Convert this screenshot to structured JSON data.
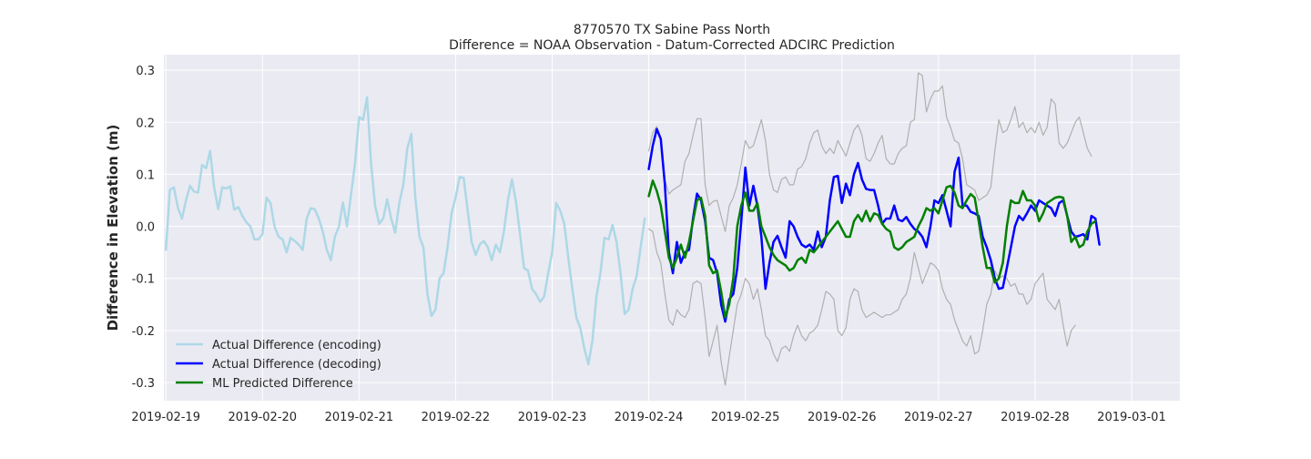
{
  "chart_data": {
    "type": "line",
    "title": "8770570 TX Sabine Pass North",
    "subtitle": "Difference = NOAA Observation - Datum-Corrected ADCIRC Prediction",
    "xlabel": "",
    "ylabel": "Difference in Elevation (m)",
    "x_axis": {
      "type": "date",
      "range": [
        "2019-02-18 23:30",
        "2019-03-01 12:00"
      ],
      "ticks": [
        "2019-02-19",
        "2019-02-20",
        "2019-02-21",
        "2019-02-22",
        "2019-02-23",
        "2019-02-24",
        "2019-02-25",
        "2019-02-26",
        "2019-02-27",
        "2019-02-28",
        "2019-03-01"
      ]
    },
    "ylim": [
      -0.335,
      0.33
    ],
    "yticks": [
      -0.3,
      -0.2,
      -0.1,
      0.0,
      0.1,
      0.2,
      0.3
    ],
    "grid": true,
    "legend_position": "bottom-left",
    "series": [
      {
        "name": "Actual Difference (encoding)",
        "color": "#add8e6",
        "x_start": "2019-02-19 00:00",
        "x_step_hours": 1,
        "values": [
          -0.045,
          0.07,
          0.075,
          0.035,
          0.015,
          0.05,
          0.078,
          0.067,
          0.065,
          0.118,
          0.112,
          0.145,
          0.075,
          0.033,
          0.075,
          0.073,
          0.077,
          0.032,
          0.037,
          0.02,
          0.008,
          0.0,
          -0.025,
          -0.025,
          -0.015,
          0.055,
          0.045,
          0.0,
          -0.02,
          -0.025,
          -0.05,
          -0.022,
          -0.028,
          -0.035,
          -0.045,
          0.015,
          0.035,
          0.033,
          0.015,
          -0.01,
          -0.045,
          -0.065,
          -0.02,
          0.0,
          0.046,
          0.0,
          0.06,
          0.12,
          0.21,
          0.205,
          0.248,
          0.12,
          0.04,
          0.005,
          0.015,
          0.052,
          0.015,
          -0.012,
          0.045,
          0.08,
          0.15,
          0.178,
          0.055,
          -0.02,
          -0.04,
          -0.13,
          -0.172,
          -0.16,
          -0.1,
          -0.09,
          -0.04,
          0.025,
          0.055,
          0.095,
          0.093,
          0.03,
          -0.03,
          -0.055,
          -0.035,
          -0.028,
          -0.04,
          -0.065,
          -0.035,
          -0.05,
          -0.01,
          0.05,
          0.09,
          0.048,
          -0.015,
          -0.08,
          -0.085,
          -0.12,
          -0.13,
          -0.145,
          -0.135,
          -0.09,
          -0.05,
          0.045,
          0.03,
          0.005,
          -0.06,
          -0.12,
          -0.175,
          -0.195,
          -0.235,
          -0.265,
          -0.22,
          -0.135,
          -0.09,
          -0.022,
          -0.025,
          0.003,
          -0.03,
          -0.09,
          -0.168,
          -0.16,
          -0.12,
          -0.095,
          -0.04,
          0.015
        ]
      },
      {
        "name": "Actual Difference (decoding)",
        "color": "#0000ff",
        "x_start": "2019-02-24 00:00",
        "x_step_hours": 1,
        "values": [
          0.11,
          0.155,
          0.187,
          0.168,
          0.08,
          -0.05,
          -0.09,
          -0.03,
          -0.07,
          -0.05,
          -0.045,
          0.015,
          0.063,
          0.05,
          0.01,
          -0.06,
          -0.065,
          -0.09,
          -0.15,
          -0.183,
          -0.14,
          -0.13,
          -0.08,
          0.01,
          0.113,
          0.04,
          0.078,
          0.04,
          -0.02,
          -0.12,
          -0.07,
          -0.03,
          -0.018,
          -0.04,
          -0.06,
          0.01,
          0.0,
          -0.02,
          -0.035,
          -0.04,
          -0.035,
          -0.045,
          -0.01,
          -0.04,
          -0.02,
          0.05,
          0.095,
          0.097,
          0.045,
          0.082,
          0.06,
          0.1,
          0.122,
          0.09,
          0.072,
          0.07,
          0.07,
          0.04,
          0.005,
          0.015,
          0.015,
          0.04,
          0.013,
          0.01,
          0.018,
          0.005,
          -0.005,
          -0.01,
          -0.02,
          -0.04,
          0.0,
          0.05,
          0.045,
          0.06,
          0.03,
          0.0,
          0.105,
          0.132,
          0.04,
          0.04,
          0.028,
          0.025,
          0.02,
          -0.02,
          -0.04,
          -0.065,
          -0.1,
          -0.12,
          -0.118,
          -0.08,
          -0.04,
          0.0,
          0.02,
          0.012,
          0.025,
          0.04,
          0.03,
          0.05,
          0.045,
          0.04,
          0.035,
          0.02,
          0.045,
          0.05,
          0.02,
          -0.01,
          -0.02,
          -0.018,
          -0.015,
          -0.025,
          0.02,
          0.015,
          -0.035
        ]
      },
      {
        "name": "ML Predicted Difference",
        "color": "#008000",
        "x_start": "2019-02-24 00:00",
        "x_step_hours": 1,
        "values": [
          0.058,
          0.088,
          0.068,
          0.04,
          -0.01,
          -0.06,
          -0.08,
          -0.06,
          -0.035,
          -0.06,
          -0.03,
          0.01,
          0.05,
          0.055,
          0.02,
          -0.075,
          -0.09,
          -0.085,
          -0.125,
          -0.175,
          -0.15,
          -0.1,
          0.0,
          0.04,
          0.065,
          0.03,
          0.03,
          0.045,
          0.0,
          -0.02,
          -0.04,
          -0.055,
          -0.065,
          -0.07,
          -0.075,
          -0.085,
          -0.08,
          -0.065,
          -0.06,
          -0.07,
          -0.045,
          -0.05,
          -0.04,
          -0.03,
          -0.02,
          -0.01,
          0.0,
          0.01,
          -0.005,
          -0.02,
          -0.02,
          0.01,
          0.022,
          0.01,
          0.03,
          0.01,
          0.025,
          0.022,
          0.005,
          -0.005,
          -0.01,
          -0.04,
          -0.045,
          -0.04,
          -0.03,
          -0.025,
          -0.02,
          0.0,
          0.015,
          0.035,
          0.03,
          0.035,
          0.025,
          0.05,
          0.075,
          0.078,
          0.065,
          0.04,
          0.035,
          0.05,
          0.062,
          0.055,
          0.01,
          -0.04,
          -0.08,
          -0.08,
          -0.108,
          -0.1,
          -0.07,
          0.0,
          0.05,
          0.045,
          0.045,
          0.068,
          0.05,
          0.05,
          0.04,
          0.01,
          0.025,
          0.045,
          0.05,
          0.055,
          0.057,
          0.055,
          0.02,
          -0.03,
          -0.02,
          -0.04,
          -0.035,
          -0.01,
          0.005,
          0.01
        ]
      },
      {
        "name": "",
        "color": "#b0b0b0",
        "x_start": "2019-02-24 00:00",
        "x_step_hours": 1,
        "values": [
          0.145,
          0.18,
          0.192,
          0.17,
          0.09,
          0.062,
          0.07,
          0.075,
          0.08,
          0.125,
          0.14,
          0.175,
          0.207,
          0.207,
          0.08,
          0.04,
          0.048,
          0.05,
          0.02,
          -0.01,
          0.04,
          0.055,
          0.08,
          0.12,
          0.165,
          0.15,
          0.155,
          0.18,
          0.205,
          0.165,
          0.1,
          0.07,
          0.065,
          0.09,
          0.095,
          0.08,
          0.08,
          0.11,
          0.115,
          0.13,
          0.16,
          0.18,
          0.185,
          0.155,
          0.14,
          0.15,
          0.14,
          0.165,
          0.15,
          0.135,
          0.16,
          0.185,
          0.195,
          0.175,
          0.13,
          0.125,
          0.14,
          0.16,
          0.175,
          0.13,
          0.12,
          0.12,
          0.14,
          0.15,
          0.155,
          0.2,
          0.205,
          0.295,
          0.29,
          0.22,
          0.245,
          0.26,
          0.26,
          0.27,
          0.21,
          0.19,
          0.165,
          0.16,
          0.13,
          0.08,
          0.075,
          0.07,
          0.05,
          0.055,
          0.06,
          0.075,
          0.145,
          0.205,
          0.18,
          0.185,
          0.205,
          0.23,
          0.19,
          0.2,
          0.18,
          0.19,
          0.18,
          0.2,
          0.175,
          0.19,
          0.245,
          0.235,
          0.16,
          0.15,
          0.16,
          0.18,
          0.2,
          0.21,
          0.18,
          0.15,
          0.135
        ]
      },
      {
        "name": "",
        "color": "#b0b0b0",
        "x_start": "2019-02-24 00:00",
        "x_step_hours": 1,
        "values": [
          -0.005,
          -0.01,
          -0.05,
          -0.07,
          -0.13,
          -0.18,
          -0.19,
          -0.16,
          -0.17,
          -0.175,
          -0.16,
          -0.11,
          -0.105,
          -0.11,
          -0.175,
          -0.25,
          -0.22,
          -0.19,
          -0.26,
          -0.305,
          -0.25,
          -0.2,
          -0.15,
          -0.13,
          -0.1,
          -0.11,
          -0.14,
          -0.12,
          -0.16,
          -0.21,
          -0.22,
          -0.245,
          -0.26,
          -0.235,
          -0.23,
          -0.24,
          -0.21,
          -0.19,
          -0.21,
          -0.22,
          -0.205,
          -0.2,
          -0.19,
          -0.16,
          -0.125,
          -0.13,
          -0.14,
          -0.2,
          -0.21,
          -0.195,
          -0.14,
          -0.12,
          -0.125,
          -0.16,
          -0.175,
          -0.17,
          -0.165,
          -0.17,
          -0.175,
          -0.17,
          -0.17,
          -0.165,
          -0.16,
          -0.14,
          -0.13,
          -0.1,
          -0.05,
          -0.08,
          -0.11,
          -0.09,
          -0.07,
          -0.075,
          -0.085,
          -0.12,
          -0.14,
          -0.15,
          -0.18,
          -0.2,
          -0.22,
          -0.23,
          -0.21,
          -0.245,
          -0.24,
          -0.2,
          -0.15,
          -0.13,
          -0.085,
          -0.1,
          -0.095,
          -0.1,
          -0.115,
          -0.11,
          -0.13,
          -0.13,
          -0.15,
          -0.14,
          -0.11,
          -0.1,
          -0.09,
          -0.14,
          -0.15,
          -0.16,
          -0.14,
          -0.19,
          -0.23,
          -0.2,
          -0.19
        ]
      }
    ]
  }
}
